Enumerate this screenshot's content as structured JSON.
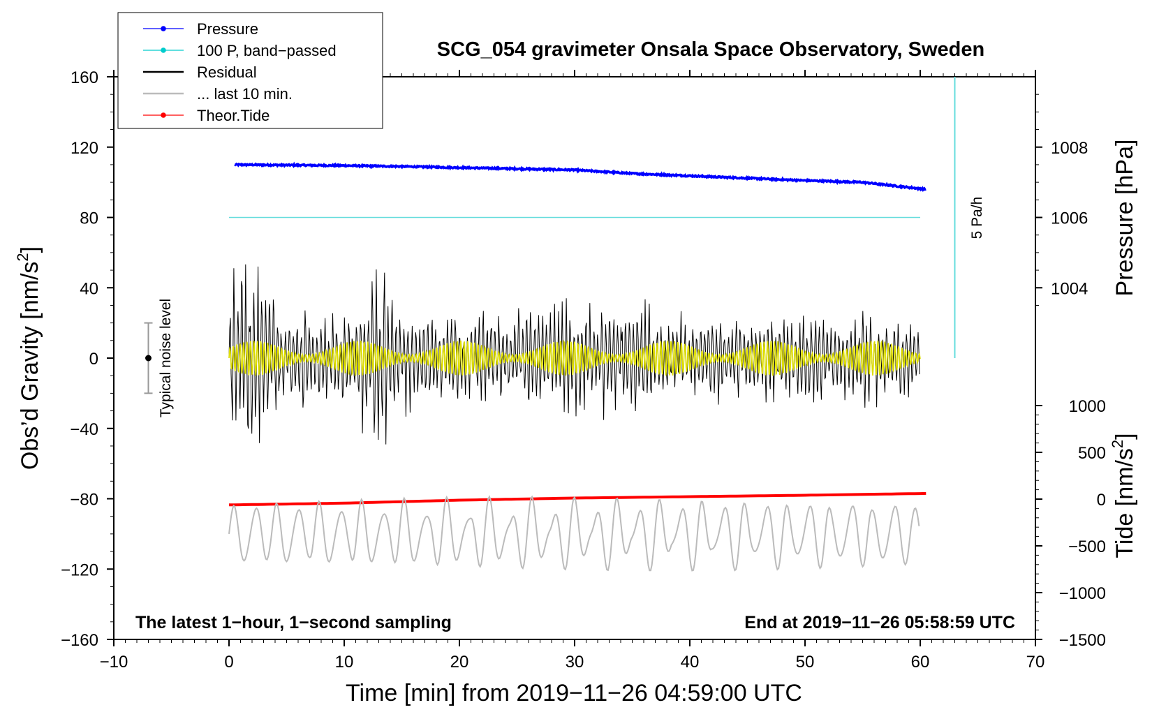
{
  "chart_data": {
    "type": "line",
    "title": "SCG_054 gravimeter Onsala Space Observatory, Sweden",
    "xlabel": "Time [min] from 2019−11−26 04:59:00 UTC",
    "ylabel": "Obs’d Gravity [nm/s",
    "ylabel_sup": "2",
    "ylabel_end": "]",
    "ylabel_right_pressure": "Pressure [hPa]",
    "ylabel_right_tide": "Tide [nm/s",
    "ylabel_right_tide_sup": "2",
    "ylabel_right_tide_end": "]",
    "xlim": [
      -10,
      70
    ],
    "ylim": [
      -160,
      160
    ],
    "x_ticks": [
      -10,
      0,
      10,
      20,
      30,
      40,
      50,
      60,
      70
    ],
    "x_tick_labels": [
      "−10",
      "0",
      "10",
      "20",
      "30",
      "40",
      "50",
      "60",
      "70"
    ],
    "y_ticks": [
      -160,
      -120,
      -80,
      -40,
      0,
      40,
      80,
      120,
      160
    ],
    "y_tick_labels": [
      "−160",
      "−120",
      "−80",
      "−40",
      "0",
      "40",
      "80",
      "120",
      "160"
    ],
    "pressure_ticks": [
      1004,
      1006,
      1008
    ],
    "pressure_tick_labels": [
      "1004",
      "1006",
      "1008"
    ],
    "pressure_per_gravity_unit": 0.05,
    "tide_ticks": [
      -1500,
      -1000,
      -500,
      0,
      500,
      1000
    ],
    "tide_tick_labels": [
      "−1500",
      "−1000",
      "−500",
      "0",
      "500",
      "1000"
    ],
    "legend": [
      {
        "label": "Pressure",
        "color": "#0000ff",
        "style": "line-dot"
      },
      {
        "label": "100 P, band−passed",
        "color": "#00cccc",
        "style": "line-dot"
      },
      {
        "label": "Residual",
        "color": "#000000",
        "style": "line"
      },
      {
        "label": "... last 10 min.",
        "color": "#bbbbbb",
        "style": "line"
      },
      {
        "label": "Theor.Tide",
        "color": "#ff0000",
        "style": "line-dot"
      }
    ],
    "legend_position": "top-left",
    "annotation_left": "The latest 1−hour, 1−second sampling",
    "annotation_right": "End at 2019−11−26 05:58:59 UTC",
    "noise_label": "Typical noise level",
    "noise_level": {
      "x": -7,
      "center": 0,
      "half_range": 20
    },
    "rate_label": "5 Pa/h",
    "rate_bar": {
      "x": 63,
      "y_from": 0,
      "y_to": 160
    },
    "series": [
      {
        "name": "Pressure",
        "color": "#0000ff",
        "x_range": [
          0.5,
          60.5
        ],
        "y_keypoints": [
          [
            0.5,
            110
          ],
          [
            10,
            109.5
          ],
          [
            15,
            109
          ],
          [
            30,
            107
          ],
          [
            35,
            105
          ],
          [
            50,
            101
          ],
          [
            55,
            100
          ],
          [
            60.5,
            96
          ]
        ]
      },
      {
        "name": "100 P, band−passed",
        "color": "#66dddd",
        "x_range": [
          0,
          60
        ],
        "constant_y": 80
      },
      {
        "name": "Residual",
        "color": "#000000",
        "x_range": [
          0,
          60
        ],
        "envelope": [
          [
            0,
            60
          ],
          [
            2,
            68
          ],
          [
            5,
            35
          ],
          [
            10,
            30
          ],
          [
            13.5,
            60
          ],
          [
            15,
            35
          ],
          [
            20,
            30
          ],
          [
            30,
            35
          ],
          [
            35,
            38
          ],
          [
            40,
            28
          ],
          [
            50,
            30
          ],
          [
            55,
            30
          ],
          [
            60,
            22
          ]
        ]
      },
      {
        "name": "band-passed residual",
        "color": "#dddd00",
        "x_range": [
          0,
          60
        ],
        "amplitude": 10
      },
      {
        "name": "Theor.Tide",
        "color": "#ff0000",
        "x_range": [
          0,
          60.5
        ],
        "y_keypoints": [
          [
            0,
            -83.5
          ],
          [
            10,
            -82.5
          ],
          [
            20,
            -80.8
          ],
          [
            30,
            -79.6
          ],
          [
            40,
            -78.8
          ],
          [
            50,
            -78
          ],
          [
            60.5,
            -77
          ]
        ]
      },
      {
        "name": "... last 10 min.",
        "color": "#bbbbbb",
        "x_range": [
          0,
          60
        ],
        "center": -100,
        "amplitude": 18
      }
    ]
  }
}
